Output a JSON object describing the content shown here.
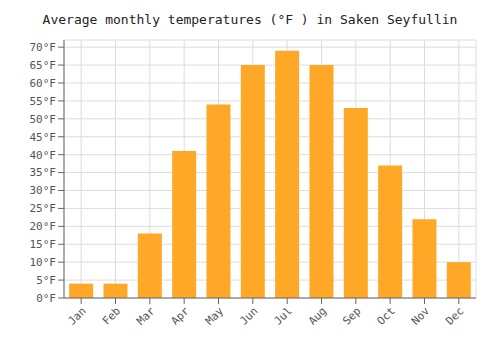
{
  "chart_data": {
    "type": "bar",
    "title": "Average monthly temperatures (°F ) in Saken Seyfullin",
    "categories": [
      "Jan",
      "Feb",
      "Mar",
      "Apr",
      "May",
      "Jun",
      "Jul",
      "Aug",
      "Sep",
      "Oct",
      "Nov",
      "Dec"
    ],
    "values": [
      4,
      4,
      18,
      41,
      54,
      65,
      69,
      65,
      53,
      37,
      22,
      10
    ],
    "color": "#FFA726",
    "ylim": [
      0,
      72
    ],
    "yticks": [
      {
        "value": 0,
        "label": "0°F"
      },
      {
        "value": 5,
        "label": "5°F"
      },
      {
        "value": 10,
        "label": "10°F"
      },
      {
        "value": 15,
        "label": "15°F"
      },
      {
        "value": 20,
        "label": "20°F"
      },
      {
        "value": 25,
        "label": "25°F"
      },
      {
        "value": 30,
        "label": "30°F"
      },
      {
        "value": 35,
        "label": "35°F"
      },
      {
        "value": 40,
        "label": "40°F"
      },
      {
        "value": 45,
        "label": "45°F"
      },
      {
        "value": 50,
        "label": "50°F"
      },
      {
        "value": 55,
        "label": "55°F"
      },
      {
        "value": 60,
        "label": "60°F"
      },
      {
        "value": 65,
        "label": "65°F"
      },
      {
        "value": 70,
        "label": "70°F"
      }
    ],
    "grid": true
  }
}
